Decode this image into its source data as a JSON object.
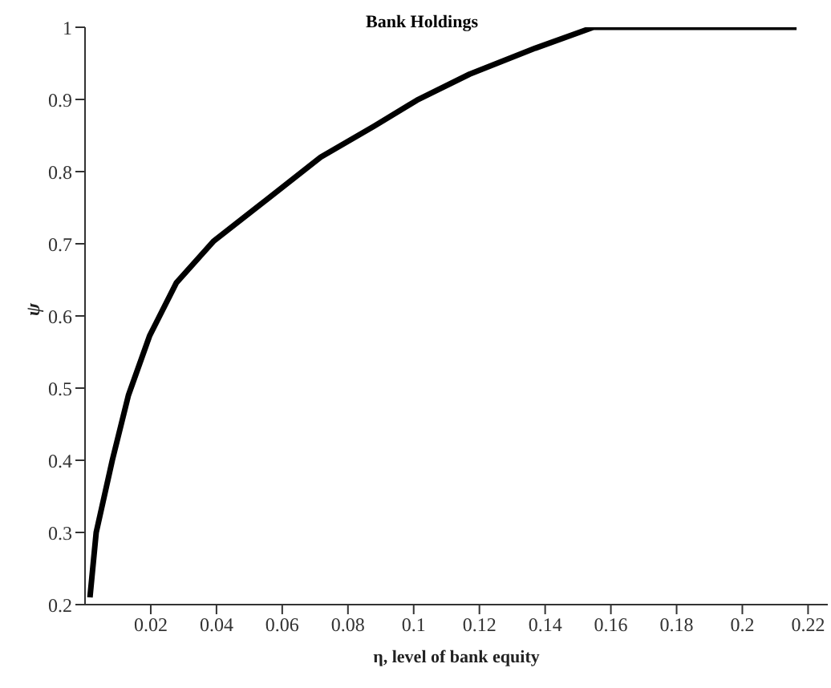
{
  "chart_data": {
    "type": "line",
    "title": "Bank Holdings",
    "xlabel": "η, level of bank equity",
    "ylabel": "ψ",
    "x": [
      0.0015,
      0.0034,
      0.0083,
      0.0132,
      0.0197,
      0.0278,
      0.0392,
      0.0555,
      0.0717,
      0.088,
      0.101,
      0.117,
      0.137,
      0.1547,
      0.2165
    ],
    "series": [
      {
        "color": "#000000",
        "values": [
          0.21,
          0.3,
          0.4,
          0.49,
          0.573,
          0.646,
          0.704,
          0.762,
          0.82,
          0.863,
          0.899,
          0.935,
          0.971,
          1.0,
          1.0
        ]
      }
    ],
    "xlim": [
      0,
      0.226
    ],
    "xticks": [
      0.02,
      0.04,
      0.06,
      0.08,
      0.1,
      0.12,
      0.14,
      0.16,
      0.18,
      0.2,
      0.22
    ],
    "ylim": [
      0.2,
      1
    ],
    "yticks": [
      0.2,
      0.3,
      0.4,
      0.5,
      0.6,
      0.7,
      0.8,
      0.9,
      1
    ],
    "grid": false,
    "legend": false,
    "marker": "none",
    "line_style": "solid"
  }
}
